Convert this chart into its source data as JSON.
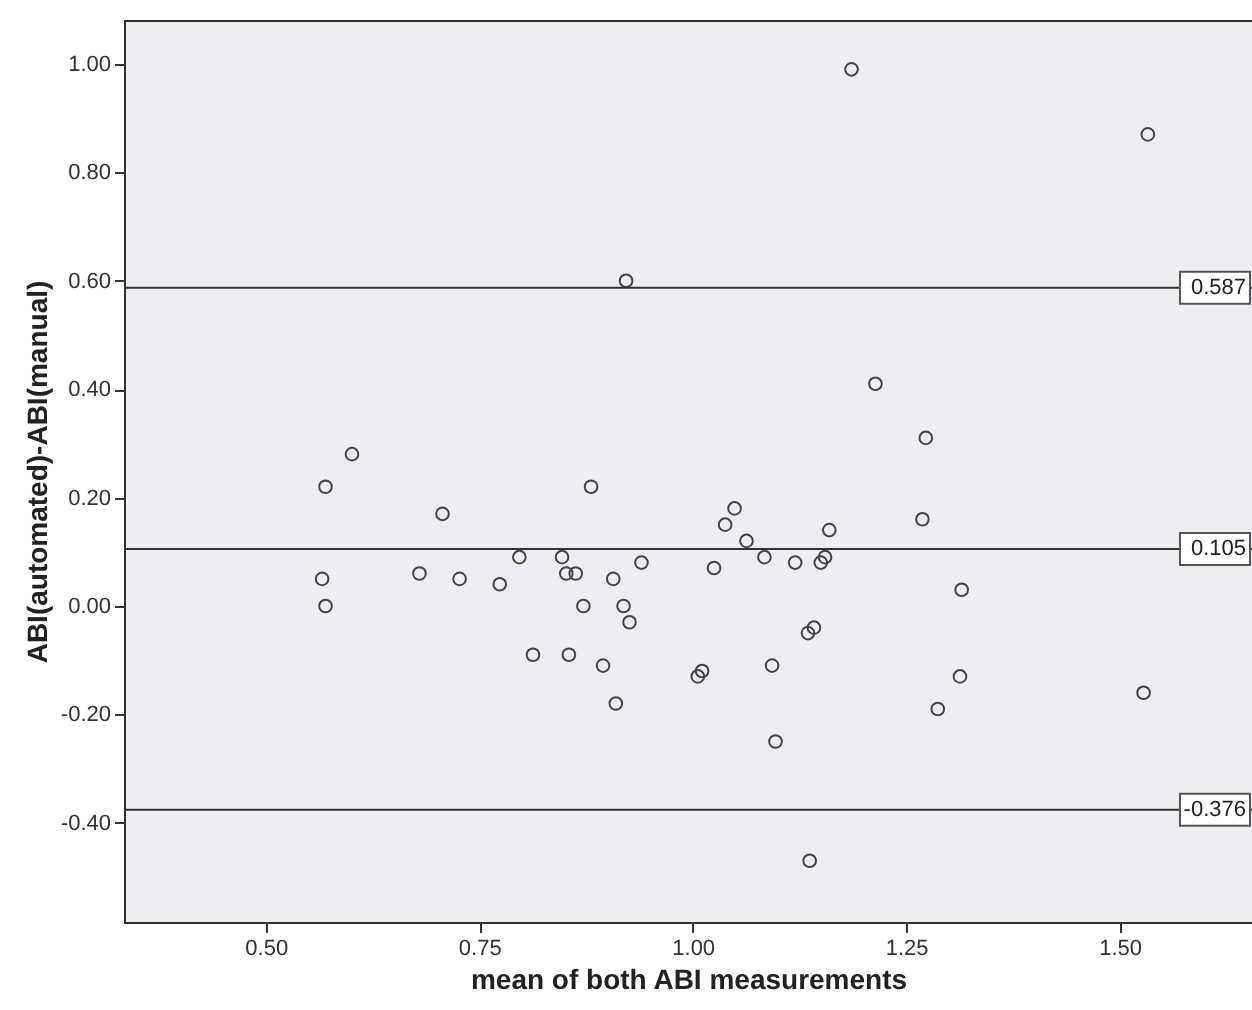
{
  "chart_data": {
    "type": "scatter",
    "xlabel": "mean of both ABI measurements",
    "ylabel": "ABI(automated)-ABI(manual)",
    "marker": "circle",
    "xlim": [
      0.334,
      1.655
    ],
    "ylim": [
      -0.583,
      1.081
    ],
    "xticks": [
      {
        "value": 0.5,
        "label": "0.50"
      },
      {
        "value": 0.75,
        "label": "0.75"
      },
      {
        "value": 1,
        "label": "1.00"
      },
      {
        "value": 1.25,
        "label": "1.25"
      },
      {
        "value": 1.5,
        "label": "1.50"
      }
    ],
    "yticks": [
      {
        "value": -0.4,
        "label": "-0.40"
      },
      {
        "value": -0.2,
        "label": "-0.20"
      },
      {
        "value": 0,
        "label": "0.00"
      },
      {
        "value": 0.2,
        "label": "0.20"
      },
      {
        "value": 0.4,
        "label": "0.40"
      },
      {
        "value": 0.6,
        "label": "0.60"
      },
      {
        "value": 0.8,
        "label": "0.80"
      },
      {
        "value": 1,
        "label": "1.00"
      }
    ],
    "ref_lines": [
      {
        "axis": "y",
        "value": 0.587,
        "label": "0.587"
      },
      {
        "axis": "y",
        "value": 0.105,
        "label": "0.105"
      },
      {
        "axis": "y",
        "value": -0.376,
        "label": "-0.376"
      }
    ],
    "series": [
      {
        "color": "#444444",
        "x": [
          1.186,
          1.533,
          0.922,
          1.214,
          0.601,
          1.273,
          0.57,
          0.881,
          0.707,
          1.049,
          1.038,
          1.269,
          1.16,
          1.063,
          0.566,
          0.57,
          0.68,
          0.727,
          0.774,
          0.797,
          0.847,
          0.852,
          0.863,
          0.872,
          0.907,
          0.94,
          0.919,
          0.926,
          0.813,
          0.855,
          0.895,
          0.91,
          1.006,
          1.011,
          1.025,
          1.084,
          1.093,
          1.097,
          1.12,
          1.135,
          1.142,
          1.15,
          1.155,
          1.137,
          1.287,
          1.313,
          1.315,
          1.528
        ],
        "values": [
          0.99,
          0.87,
          0.6,
          0.41,
          0.28,
          0.31,
          0.22,
          0.22,
          0.17,
          0.18,
          0.15,
          0.16,
          0.14,
          0.12,
          0.05,
          0.0,
          0.06,
          0.05,
          0.04,
          0.09,
          0.09,
          0.06,
          0.06,
          0.0,
          0.05,
          0.08,
          0.0,
          -0.03,
          -0.09,
          -0.09,
          -0.11,
          -0.18,
          -0.13,
          -0.12,
          0.07,
          0.09,
          -0.11,
          -0.25,
          0.08,
          -0.05,
          -0.04,
          0.08,
          0.09,
          -0.47,
          -0.19,
          -0.13,
          0.03,
          -0.16
        ]
      }
    ]
  }
}
